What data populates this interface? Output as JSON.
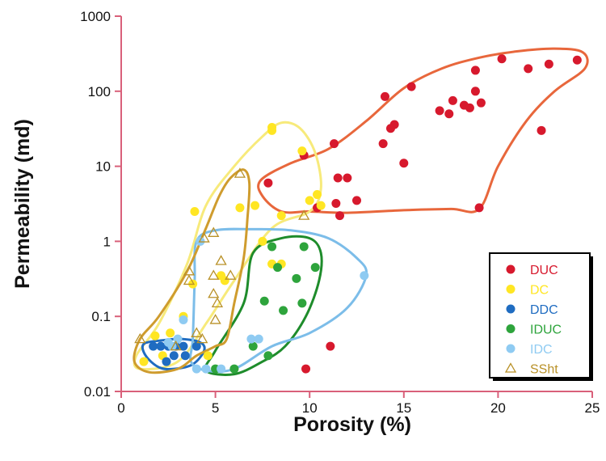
{
  "chart_data": {
    "type": "scatter",
    "xlabel": "Porosity (%)",
    "ylabel": "Permeability (md)",
    "xlim": [
      0,
      25
    ],
    "ylim": [
      0.01,
      1000
    ],
    "y_scale": "log",
    "x_ticks": [
      0,
      5,
      10,
      15,
      20,
      25
    ],
    "y_ticks": [
      0.01,
      0.1,
      1,
      10,
      100,
      1000
    ],
    "x_tick_labels": [
      "0",
      "5",
      "10",
      "15",
      "20",
      "25"
    ],
    "y_tick_labels": [
      "0.01",
      "0.1",
      "1",
      "10",
      "100",
      "1000"
    ],
    "legend_position": "lower-right",
    "series": [
      {
        "name": "DUC",
        "color": "#d7192d",
        "marker": "circle",
        "points": [
          [
            7.8,
            6
          ],
          [
            9.7,
            14
          ],
          [
            10.4,
            2.8
          ],
          [
            11.3,
            20
          ],
          [
            11.5,
            7
          ],
          [
            12.0,
            7
          ],
          [
            11.4,
            3.2
          ],
          [
            11.6,
            2.2
          ],
          [
            12.5,
            3.5
          ],
          [
            13.9,
            20
          ],
          [
            14.3,
            32
          ],
          [
            14.5,
            36
          ],
          [
            14.0,
            85
          ],
          [
            15.4,
            115
          ],
          [
            15.0,
            11
          ],
          [
            16.9,
            55
          ],
          [
            17.4,
            50
          ],
          [
            17.6,
            75
          ],
          [
            18.2,
            65
          ],
          [
            18.5,
            60
          ],
          [
            18.8,
            100
          ],
          [
            18.8,
            190
          ],
          [
            19.1,
            70
          ],
          [
            19.0,
            2.8
          ],
          [
            20.2,
            270
          ],
          [
            21.6,
            200
          ],
          [
            22.7,
            230
          ],
          [
            22.3,
            30
          ],
          [
            24.2,
            260
          ],
          [
            11.1,
            0.04
          ],
          [
            9.8,
            0.02
          ]
        ]
      },
      {
        "name": "DC",
        "color": "#ffe623",
        "marker": "circle",
        "points": [
          [
            8.0,
            30
          ],
          [
            8.0,
            33
          ],
          [
            6.3,
            2.8
          ],
          [
            7.1,
            3
          ],
          [
            8.5,
            2.2
          ],
          [
            9.6,
            16
          ],
          [
            10.0,
            3.5
          ],
          [
            10.4,
            4.2
          ],
          [
            10.6,
            3
          ],
          [
            3.9,
            2.5
          ],
          [
            3.8,
            0.27
          ],
          [
            3.3,
            0.1
          ],
          [
            2.6,
            0.06
          ],
          [
            1.8,
            0.055
          ],
          [
            5.5,
            0.3
          ],
          [
            7.5,
            1.0
          ],
          [
            8.0,
            0.5
          ],
          [
            8.5,
            0.5
          ],
          [
            2.2,
            0.03
          ],
          [
            1.2,
            0.025
          ],
          [
            4.6,
            0.03
          ],
          [
            5.3,
            0.35
          ]
        ]
      },
      {
        "name": "DDC",
        "color": "#1f6cc1",
        "marker": "circle",
        "points": [
          [
            1.7,
            0.04
          ],
          [
            2.1,
            0.04
          ],
          [
            2.5,
            0.04
          ],
          [
            2.9,
            0.04
          ],
          [
            3.3,
            0.04
          ],
          [
            4.0,
            0.04
          ],
          [
            2.8,
            0.03
          ],
          [
            3.4,
            0.03
          ],
          [
            2.4,
            0.025
          ]
        ]
      },
      {
        "name": "IDUC",
        "color": "#2ea43c",
        "marker": "circle",
        "points": [
          [
            8.0,
            0.85
          ],
          [
            9.7,
            0.85
          ],
          [
            10.3,
            0.45
          ],
          [
            9.3,
            0.32
          ],
          [
            8.3,
            0.45
          ],
          [
            7.6,
            0.16
          ],
          [
            8.6,
            0.12
          ],
          [
            9.6,
            0.15
          ],
          [
            7.8,
            0.03
          ],
          [
            7.0,
            0.04
          ],
          [
            5.0,
            0.02
          ],
          [
            6.0,
            0.02
          ]
        ]
      },
      {
        "name": "IDC",
        "color": "#8fcbf2",
        "marker": "circle",
        "points": [
          [
            4.2,
            1.0
          ],
          [
            3.3,
            0.09
          ],
          [
            3.0,
            0.05
          ],
          [
            2.7,
            0.04
          ],
          [
            4.0,
            0.02
          ],
          [
            4.5,
            0.02
          ],
          [
            5.3,
            0.02
          ],
          [
            6.9,
            0.05
          ],
          [
            7.3,
            0.05
          ],
          [
            12.9,
            0.35
          ],
          [
            2.5,
            0.045
          ]
        ]
      },
      {
        "name": "SSht",
        "color": "#b99128",
        "marker": "triangle",
        "points": [
          [
            6.3,
            8.0
          ],
          [
            4.9,
            1.3
          ],
          [
            4.4,
            1.1
          ],
          [
            5.3,
            0.55
          ],
          [
            4.9,
            0.35
          ],
          [
            3.6,
            0.4
          ],
          [
            3.6,
            0.3
          ],
          [
            4.9,
            0.2
          ],
          [
            5.1,
            0.15
          ],
          [
            5.0,
            0.09
          ],
          [
            1.0,
            0.05
          ],
          [
            4.3,
            0.05
          ],
          [
            2.9,
            0.04
          ],
          [
            5.8,
            0.35
          ],
          [
            9.7,
            2.2
          ],
          [
            4.0,
            0.06
          ]
        ]
      }
    ],
    "envelopes": [
      {
        "series": "DUC",
        "color": "#e8673c",
        "points": [
          [
            7.4,
            6.5
          ],
          [
            9.0,
            11
          ],
          [
            11.0,
            17
          ],
          [
            13.0,
            40
          ],
          [
            15.0,
            110
          ],
          [
            17.0,
            200
          ],
          [
            19.0,
            280
          ],
          [
            21.0,
            340
          ],
          [
            23.0,
            370
          ],
          [
            24.5,
            330
          ],
          [
            24.6,
            200
          ],
          [
            23.0,
            100
          ],
          [
            21.5,
            40
          ],
          [
            20.0,
            10
          ],
          [
            19.0,
            2.7
          ],
          [
            17.5,
            2.7
          ],
          [
            15.0,
            2.6
          ],
          [
            12.0,
            2.4
          ],
          [
            10.0,
            2.5
          ],
          [
            8.5,
            2.5
          ],
          [
            7.5,
            4.0
          ]
        ]
      },
      {
        "series": "DC",
        "color": "#f7ea7b",
        "points": [
          [
            7.5,
            25
          ],
          [
            8.5,
            38
          ],
          [
            9.5,
            32
          ],
          [
            10.3,
            15
          ],
          [
            10.6,
            5
          ],
          [
            10.0,
            2.5
          ],
          [
            8.0,
            1.5
          ],
          [
            6.0,
            0.3
          ],
          [
            4.5,
            0.08
          ],
          [
            3.0,
            0.025
          ],
          [
            1.0,
            0.02
          ],
          [
            0.8,
            0.03
          ],
          [
            2.0,
            0.08
          ],
          [
            3.5,
            0.5
          ],
          [
            4.5,
            3
          ],
          [
            6.0,
            10
          ]
        ]
      },
      {
        "series": "DDC",
        "color": "#1f6cc1",
        "points": [
          [
            1.2,
            0.043
          ],
          [
            2.2,
            0.048
          ],
          [
            3.2,
            0.05
          ],
          [
            4.2,
            0.045
          ],
          [
            4.4,
            0.035
          ],
          [
            3.8,
            0.023
          ],
          [
            2.8,
            0.02
          ],
          [
            2.0,
            0.021
          ],
          [
            1.3,
            0.03
          ]
        ]
      },
      {
        "series": "IDUC",
        "color": "#1e8c2b",
        "points": [
          [
            7.0,
            0.7
          ],
          [
            8.5,
            1.1
          ],
          [
            10.0,
            1.1
          ],
          [
            10.6,
            0.7
          ],
          [
            10.5,
            0.3
          ],
          [
            9.8,
            0.1
          ],
          [
            8.7,
            0.04
          ],
          [
            7.5,
            0.025
          ],
          [
            6.0,
            0.017
          ],
          [
            4.5,
            0.019
          ],
          [
            5.0,
            0.035
          ],
          [
            6.5,
            0.15
          ]
        ]
      },
      {
        "series": "IDC",
        "color": "#7cbde9",
        "points": [
          [
            4.0,
            1.0
          ],
          [
            5.0,
            1.4
          ],
          [
            7.0,
            1.45
          ],
          [
            9.0,
            1.4
          ],
          [
            11.0,
            1.1
          ],
          [
            12.5,
            0.6
          ],
          [
            13.0,
            0.35
          ],
          [
            12.0,
            0.13
          ],
          [
            10.0,
            0.06
          ],
          [
            8.0,
            0.04
          ],
          [
            6.0,
            0.02
          ],
          [
            4.5,
            0.019
          ],
          [
            3.7,
            0.025
          ],
          [
            3.8,
            0.05
          ],
          [
            3.9,
            0.3
          ]
        ]
      },
      {
        "series": "SSht",
        "color": "#cf9c2e",
        "points": [
          [
            5.8,
            7.0
          ],
          [
            6.5,
            9.0
          ],
          [
            6.8,
            6.0
          ],
          [
            6.7,
            2.0
          ],
          [
            6.5,
            0.6
          ],
          [
            6.0,
            0.15
          ],
          [
            5.6,
            0.05
          ],
          [
            5.0,
            0.04
          ],
          [
            4.0,
            0.03
          ],
          [
            3.0,
            0.02
          ],
          [
            1.5,
            0.018
          ],
          [
            0.7,
            0.025
          ],
          [
            1.0,
            0.05
          ],
          [
            2.0,
            0.1
          ],
          [
            3.5,
            0.4
          ],
          [
            4.5,
            1.5
          ],
          [
            5.2,
            4.0
          ]
        ]
      }
    ]
  }
}
